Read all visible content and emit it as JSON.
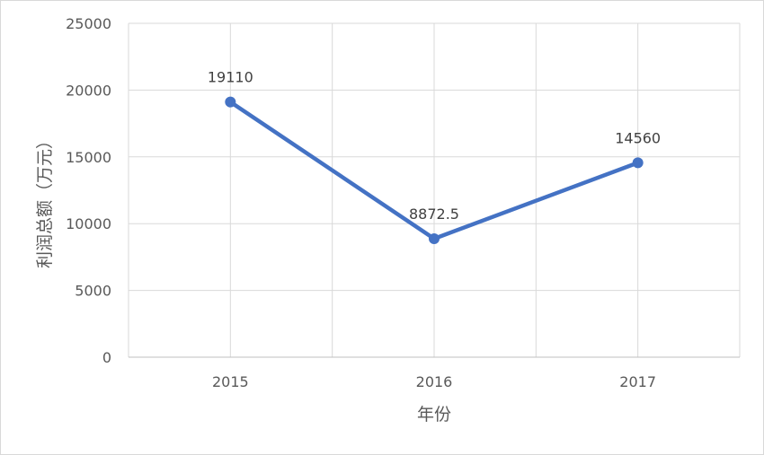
{
  "chart_data": {
    "type": "line",
    "title": "",
    "xlabel": "年份",
    "ylabel": "利润总额（万元）",
    "categories": [
      "2015",
      "2016",
      "2017"
    ],
    "series": [
      {
        "values": [
          19110,
          8872.5,
          14560
        ],
        "labels": [
          "19110",
          "8872.5",
          "14560"
        ]
      }
    ],
    "ylim": [
      0,
      25000
    ],
    "yticks": [
      "0",
      "5000",
      "10000",
      "15000",
      "20000",
      "25000"
    ],
    "grid": true,
    "legend": "none",
    "colors": {
      "line": "#4472c4",
      "grid": "#d9d9d9",
      "axis": "#bfbfbf"
    }
  }
}
